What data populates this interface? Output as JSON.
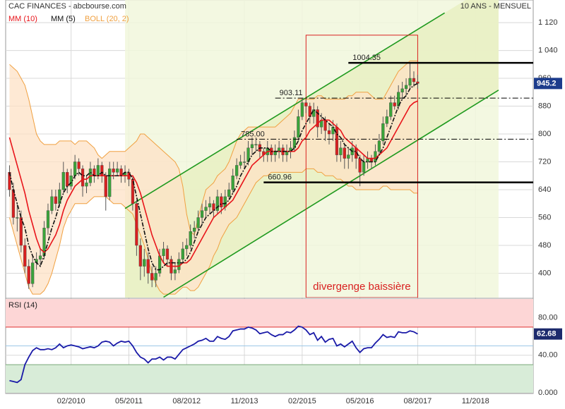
{
  "header": {
    "title": "CAC FINANCES - abcbourse.com",
    "period": "10 ANS - MENSUEL"
  },
  "chart_data": [
    {
      "type": "candlestick",
      "x": [
        "10/2008",
        "11/2008",
        "12/2008",
        "01/2009",
        "02/2009",
        "03/2009",
        "04/2009",
        "05/2009",
        "06/2009",
        "07/2009",
        "08/2009",
        "09/2009",
        "10/2009",
        "11/2009",
        "12/2009",
        "01/2010",
        "02/2010",
        "03/2010",
        "04/2010",
        "05/2010",
        "06/2010",
        "07/2010",
        "08/2010",
        "09/2010",
        "10/2010",
        "11/2010",
        "12/2010",
        "01/2011",
        "02/2011",
        "03/2011",
        "04/2011",
        "05/2011",
        "06/2011",
        "07/2011",
        "08/2011",
        "09/2011",
        "10/2011",
        "11/2011",
        "12/2011",
        "01/2012",
        "02/2012",
        "03/2012",
        "04/2012",
        "05/2012",
        "06/2012",
        "07/2012",
        "08/2012",
        "09/2012",
        "10/2012",
        "11/2012",
        "12/2012",
        "01/2013",
        "02/2013",
        "03/2013",
        "04/2013",
        "05/2013",
        "06/2013",
        "07/2013",
        "08/2013",
        "09/2013",
        "10/2013",
        "11/2013",
        "12/2013",
        "01/2014",
        "02/2014",
        "03/2014",
        "04/2014",
        "05/2014",
        "06/2014",
        "07/2014",
        "08/2014",
        "09/2014",
        "10/2014",
        "11/2014",
        "12/2014",
        "01/2015",
        "02/2015",
        "03/2015",
        "04/2015",
        "05/2015",
        "06/2015",
        "07/2015",
        "08/2015",
        "09/2015",
        "10/2015",
        "11/2015",
        "12/2015",
        "01/2016",
        "02/2016",
        "03/2016",
        "04/2016",
        "05/2016",
        "06/2016",
        "07/2016",
        "08/2016",
        "09/2016",
        "10/2016",
        "11/2016",
        "12/2016",
        "01/2017",
        "02/2017",
        "03/2017",
        "04/2017",
        "05/2017",
        "06/2017",
        "07/2017",
        "08/2017"
      ],
      "open": [
        690,
        640,
        560,
        560,
        480,
        420,
        370,
        430,
        440,
        450,
        530,
        580,
        620,
        600,
        640,
        690,
        650,
        680,
        720,
        700,
        650,
        660,
        700,
        680,
        710,
        680,
        620,
        700,
        690,
        700,
        680,
        690,
        670,
        600,
        480,
        420,
        440,
        400,
        380,
        400,
        450,
        470,
        440,
        400,
        410,
        440,
        470,
        480,
        520,
        530,
        560,
        580,
        590,
        600,
        580,
        620,
        590,
        620,
        640,
        680,
        710,
        720,
        720,
        760,
        770,
        770,
        750,
        740,
        760,
        740,
        750,
        760,
        740,
        750,
        760,
        790,
        850,
        890,
        880,
        850,
        870,
        820,
        840,
        810,
        800,
        820,
        740,
        760,
        730,
        740,
        760,
        730,
        690,
        720,
        730,
        720,
        750,
        780,
        830,
        850,
        890,
        880,
        920,
        930,
        940,
        960,
        950
      ],
      "high": [
        710,
        660,
        600,
        580,
        500,
        440,
        450,
        460,
        470,
        550,
        600,
        640,
        640,
        660,
        720,
        700,
        700,
        740,
        730,
        710,
        680,
        720,
        710,
        730,
        720,
        690,
        720,
        720,
        720,
        710,
        710,
        700,
        680,
        610,
        500,
        470,
        460,
        420,
        420,
        470,
        490,
        480,
        450,
        430,
        460,
        490,
        500,
        540,
        550,
        580,
        600,
        610,
        620,
        610,
        640,
        630,
        640,
        660,
        700,
        730,
        740,
        750,
        780,
        790,
        790,
        780,
        760,
        780,
        770,
        770,
        780,
        770,
        770,
        780,
        810,
        870,
        903.11,
        900,
        890,
        890,
        880,
        860,
        850,
        830,
        840,
        830,
        780,
        770,
        760,
        780,
        770,
        740,
        740,
        750,
        740,
        770,
        800,
        850,
        870,
        910,
        910,
        940,
        950,
        960,
        1004.35,
        980,
        970
      ],
      "low": [
        620,
        540,
        520,
        460,
        400,
        355,
        360,
        410,
        420,
        440,
        510,
        570,
        580,
        590,
        630,
        630,
        640,
        670,
        680,
        620,
        630,
        650,
        660,
        670,
        660,
        580,
        610,
        670,
        680,
        660,
        660,
        650,
        580,
        450,
        380,
        390,
        370,
        360,
        360,
        390,
        430,
        420,
        380,
        380,
        400,
        430,
        450,
        470,
        500,
        520,
        540,
        560,
        570,
        560,
        570,
        570,
        580,
        610,
        630,
        670,
        700,
        700,
        710,
        740,
        750,
        730,
        720,
        720,
        720,
        720,
        730,
        720,
        720,
        730,
        750,
        780,
        840,
        860,
        830,
        830,
        790,
        800,
        780,
        770,
        780,
        720,
        720,
        700,
        700,
        720,
        700,
        650,
        680,
        700,
        700,
        710,
        740,
        770,
        820,
        840,
        870,
        870,
        900,
        910,
        930,
        935,
        930
      ],
      "close": [
        640,
        560,
        560,
        480,
        420,
        370,
        430,
        440,
        450,
        530,
        580,
        620,
        600,
        640,
        690,
        650,
        680,
        720,
        700,
        650,
        660,
        700,
        680,
        710,
        680,
        620,
        700,
        690,
        700,
        680,
        690,
        670,
        600,
        480,
        420,
        440,
        400,
        380,
        400,
        450,
        470,
        440,
        400,
        410,
        440,
        470,
        480,
        520,
        530,
        560,
        580,
        590,
        600,
        580,
        620,
        590,
        620,
        640,
        680,
        710,
        720,
        720,
        760,
        770,
        770,
        750,
        740,
        760,
        740,
        750,
        760,
        740,
        750,
        760,
        790,
        850,
        890,
        880,
        850,
        870,
        820,
        840,
        810,
        800,
        820,
        740,
        760,
        730,
        740,
        760,
        730,
        690,
        720,
        730,
        720,
        750,
        780,
        830,
        850,
        890,
        880,
        920,
        930,
        940,
        960,
        950,
        945.2
      ],
      "up_color": "#3aa43a",
      "down_color": "#d92020",
      "series": [
        {
          "name": "MM (10)",
          "color": "#e8141a",
          "dashed": false,
          "values": [
            790,
            750,
            710,
            670,
            630,
            580,
            540,
            500,
            470,
            460,
            470,
            490,
            510,
            540,
            580,
            610,
            630,
            650,
            660,
            670,
            670,
            680,
            680,
            680,
            680,
            680,
            680,
            680,
            680,
            680,
            680,
            680,
            680,
            660,
            630,
            590,
            550,
            510,
            480,
            450,
            430,
            420,
            420,
            420,
            420,
            430,
            430,
            440,
            460,
            480,
            500,
            520,
            540,
            560,
            570,
            580,
            590,
            600,
            610,
            630,
            650,
            670,
            690,
            710,
            720,
            730,
            740,
            750,
            750,
            750,
            750,
            750,
            750,
            750,
            750,
            760,
            780,
            790,
            810,
            820,
            830,
            840,
            840,
            840,
            830,
            820,
            810,
            790,
            780,
            770,
            760,
            750,
            740,
            730,
            730,
            730,
            740,
            750,
            760,
            780,
            800,
            820,
            840,
            860,
            880,
            890,
            895
          ]
        },
        {
          "name": "MM (5)",
          "color": "#111111",
          "dashed": true,
          "values": [
            690,
            640,
            600,
            560,
            530,
            480,
            450,
            430,
            420,
            450,
            490,
            530,
            560,
            600,
            630,
            650,
            660,
            680,
            690,
            680,
            680,
            690,
            680,
            680,
            690,
            680,
            680,
            680,
            680,
            680,
            690,
            690,
            670,
            620,
            570,
            520,
            470,
            430,
            410,
            410,
            420,
            430,
            430,
            430,
            430,
            430,
            440,
            460,
            490,
            520,
            540,
            560,
            570,
            580,
            590,
            600,
            600,
            610,
            630,
            650,
            680,
            700,
            720,
            740,
            750,
            760,
            760,
            760,
            750,
            750,
            750,
            750,
            750,
            750,
            760,
            780,
            810,
            830,
            850,
            870,
            860,
            850,
            840,
            830,
            820,
            800,
            790,
            770,
            760,
            750,
            750,
            730,
            720,
            720,
            720,
            720,
            740,
            760,
            790,
            820,
            850,
            880,
            900,
            910,
            930,
            940,
            945
          ]
        }
      ],
      "bollinger": {
        "name": "BOLL (20, 2)",
        "color": "#f0a040",
        "fill": "#fde2c6",
        "upper": [
          1000,
          990,
          980,
          960,
          940,
          900,
          850,
          800,
          780,
          770,
          770,
          770,
          770,
          780,
          780,
          780,
          780,
          770,
          780,
          780,
          780,
          770,
          760,
          740,
          730,
          740,
          750,
          750,
          750,
          750,
          750,
          760,
          770,
          780,
          800,
          800,
          790,
          780,
          770,
          760,
          750,
          740,
          730,
          720,
          700,
          650,
          570,
          520,
          510,
          560,
          600,
          640,
          650,
          660,
          680,
          690,
          700,
          720,
          750,
          780,
          800,
          810,
          820,
          820,
          820,
          820,
          820,
          820,
          820,
          820,
          830,
          840,
          850,
          860,
          880,
          900,
          900,
          900,
          900,
          900,
          910,
          910,
          900,
          900,
          900,
          900,
          900,
          900,
          910,
          910,
          920,
          920,
          920,
          920,
          910,
          900,
          900,
          900,
          920,
          940,
          960,
          980,
          990,
          1000,
          1010,
          1010,
          1010
        ],
        "lower": [
          560,
          520,
          480,
          440,
          400,
          360,
          340,
          340,
          340,
          350,
          370,
          400,
          440,
          480,
          530,
          560,
          580,
          600,
          600,
          600,
          600,
          610,
          620,
          620,
          620,
          620,
          610,
          600,
          600,
          600,
          590,
          580,
          570,
          540,
          510,
          480,
          440,
          400,
          370,
          350,
          340,
          340,
          340,
          340,
          350,
          360,
          360,
          350,
          350,
          360,
          380,
          400,
          420,
          450,
          470,
          500,
          520,
          540,
          550,
          560,
          580,
          600,
          620,
          640,
          660,
          670,
          680,
          680,
          690,
          690,
          690,
          690,
          690,
          690,
          690,
          690,
          690,
          700,
          700,
          700,
          690,
          690,
          680,
          680,
          680,
          670,
          670,
          660,
          650,
          650,
          640,
          640,
          640,
          640,
          640,
          640,
          640,
          650,
          650,
          640,
          640,
          640,
          640,
          640,
          640,
          630,
          630
        ]
      },
      "channel": {
        "color": "#1f9a1f",
        "fill": "#e9efc4",
        "zone": "#f1f7dc",
        "upper": [
          [
            "04/2011",
            586
          ],
          [
            "03/2018",
            1148
          ]
        ],
        "lower": [
          [
            "02/2012",
            331
          ],
          [
            "05/2019",
            926
          ]
        ]
      },
      "levels": [
        {
          "value": 1004.35,
          "start": "02/2016",
          "style": "solid"
        },
        {
          "value": 903.11,
          "start": "07/2014",
          "style": "dashdot"
        },
        {
          "value": 785,
          "label": "785.00",
          "start": "09/2013",
          "style": "dashdot"
        },
        {
          "value": 660.96,
          "start": "04/2014",
          "style": "solid"
        }
      ],
      "box": {
        "label": "divergenge baissière",
        "x": [
          "03/2015",
          "08/2017"
        ],
        "top": 1084,
        "color": "#d92020"
      },
      "xlim": [
        "09/2008",
        "02/2020"
      ],
      "xticks": [
        "02/2010",
        "05/2011",
        "08/2012",
        "11/2013",
        "02/2015",
        "05/2016",
        "08/2017",
        "11/2018"
      ],
      "ylim": [
        330,
        1185
      ],
      "yticks": [
        400,
        480,
        560,
        640,
        720,
        800,
        880,
        960,
        {
          "value": 1040,
          "label": "1 040"
        },
        {
          "value": 1120,
          "label": "1 120"
        }
      ],
      "last_color": "#1c3c8c",
      "grid": true
    },
    {
      "type": "line",
      "title": "RSI (14)",
      "color": "#1a1aa8",
      "values": [
        13,
        12,
        11,
        14,
        30,
        38,
        45,
        48,
        46,
        46,
        47,
        46,
        48,
        52,
        48,
        50,
        51,
        50,
        49,
        47,
        48,
        49,
        48,
        50,
        54,
        55,
        54,
        50,
        53,
        55,
        54,
        55,
        50,
        43,
        38,
        36,
        32,
        36,
        36,
        38,
        35,
        38,
        38,
        36,
        41,
        46,
        48,
        50,
        52,
        55,
        56,
        58,
        55,
        55,
        60,
        58,
        57,
        60,
        66,
        67,
        68,
        68,
        70,
        69,
        67,
        63,
        64,
        65,
        62,
        60,
        62,
        62,
        65,
        64,
        67,
        71,
        70,
        67,
        62,
        64,
        56,
        60,
        54,
        57,
        58,
        50,
        52,
        49,
        52,
        55,
        48,
        43,
        47,
        48,
        48,
        53,
        57,
        62,
        59,
        60,
        59,
        65,
        64,
        64,
        66,
        65,
        62.68
      ],
      "ylim": [
        0,
        100
      ],
      "yticks": [
        {
          "value": 0,
          "label": "0.000"
        },
        {
          "value": 40,
          "label": "40.00"
        },
        {
          "value": 80,
          "label": "80.00"
        }
      ],
      "zones": [
        {
          "from": 70,
          "to": 100,
          "color": "#fdd6d6"
        },
        {
          "from": 0,
          "to": 30,
          "color": "#d8ecd8"
        }
      ],
      "levels": [
        {
          "value": 70,
          "color": "#e03030"
        },
        {
          "value": 50,
          "color": "#9cc8e8"
        },
        {
          "value": 30,
          "color": "#7aa87a"
        }
      ],
      "last_color": "#1c2a6c",
      "grid": true
    }
  ]
}
